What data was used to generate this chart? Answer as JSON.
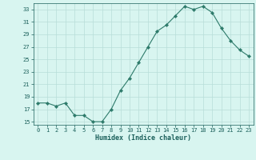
{
  "x": [
    0,
    1,
    2,
    3,
    4,
    5,
    6,
    7,
    8,
    9,
    10,
    11,
    12,
    13,
    14,
    15,
    16,
    17,
    18,
    19,
    20,
    21,
    22,
    23
  ],
  "y": [
    18,
    18,
    17.5,
    18,
    16,
    16,
    15,
    15,
    17,
    20,
    22,
    24.5,
    27,
    29.5,
    30.5,
    32,
    33.5,
    33,
    33.5,
    32.5,
    30,
    28,
    26.5,
    25.5
  ],
  "line_color": "#2d7a6a",
  "marker": "D",
  "marker_size": 2.2,
  "bg_color": "#d8f5f0",
  "grid_color": "#b8ddd8",
  "xlabel": "Humidex (Indice chaleur)",
  "tick_color": "#1a5f5a",
  "label_color": "#1a5f5a",
  "xlim": [
    -0.5,
    23.5
  ],
  "ylim": [
    14.5,
    34
  ],
  "yticks": [
    15,
    17,
    19,
    21,
    23,
    25,
    27,
    29,
    31,
    33
  ],
  "xticks": [
    0,
    1,
    2,
    3,
    4,
    5,
    6,
    7,
    8,
    9,
    10,
    11,
    12,
    13,
    14,
    15,
    16,
    17,
    18,
    19,
    20,
    21,
    22,
    23
  ],
  "figsize": [
    3.2,
    2.0
  ],
  "dpi": 100
}
